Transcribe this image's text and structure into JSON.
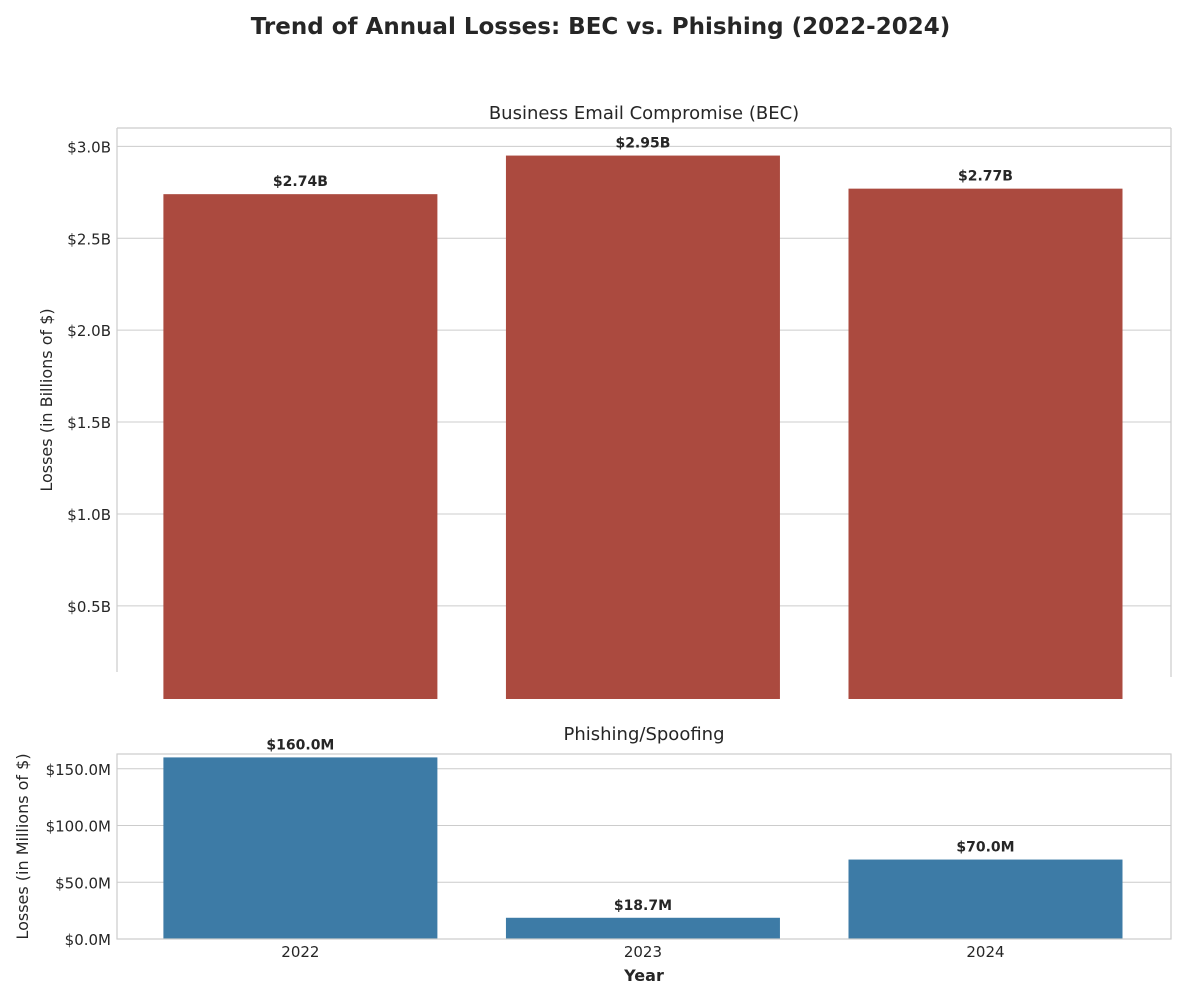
{
  "title": "Trend of Annual Losses: BEC vs. Phishing (2022-2024)",
  "chart_data": [
    {
      "type": "bar",
      "title": "Business Email Compromise (BEC)",
      "categories": [
        "2022",
        "2023",
        "2024"
      ],
      "values": [
        2.74,
        2.95,
        2.77
      ],
      "value_labels": [
        "$2.74B",
        "$2.95B",
        "$2.77B"
      ],
      "ylabel": "Losses (in Billions of $)",
      "xlabel": "",
      "yticks": [
        0.5,
        1.0,
        1.5,
        2.0,
        2.5,
        3.0
      ],
      "ytick_labels": [
        "$0.5B",
        "$1.0B",
        "$1.5B",
        "$2.0B",
        "$2.5B",
        "$3.0B"
      ],
      "ylim": [
        0.14,
        3.1
      ],
      "y_axis_break_below": true,
      "grid": "horizontal",
      "color": "#ab4a3f"
    },
    {
      "type": "bar",
      "title": "Phishing/Spoofing",
      "categories": [
        "2022",
        "2023",
        "2024"
      ],
      "values": [
        160.0,
        18.7,
        70.0
      ],
      "value_labels": [
        "$160.0M",
        "$18.7M",
        "$70.0M"
      ],
      "ylabel": "Losses (in Millions of $)",
      "xlabel": "Year",
      "yticks": [
        0,
        50,
        100,
        150
      ],
      "ytick_labels": [
        "$0.0M",
        "$50.0M",
        "$100.0M",
        "$150.0M"
      ],
      "ylim": [
        0,
        163
      ],
      "grid": "horizontal",
      "color": "#3d7ba6"
    }
  ]
}
